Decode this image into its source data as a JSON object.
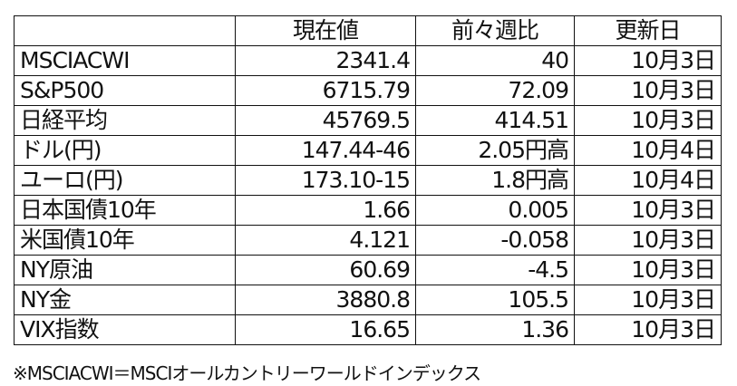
{
  "header": [
    "",
    "現在値",
    "前々週比",
    "更新日"
  ],
  "rows": [
    [
      "MSCIACWI",
      "2341.4",
      "40",
      "10月3日"
    ],
    [
      "S&P500",
      "6715.79",
      "72.09",
      "10月3日"
    ],
    [
      "日経平均",
      "45769.5",
      "414.51",
      "10月3日"
    ],
    [
      "ドル(円)",
      "147.44-46",
      "2.05円高",
      "10月4日"
    ],
    [
      "ユーロ(円)",
      "173.10-15",
      "1.8円高",
      "10月4日"
    ],
    [
      "日本国債10年",
      "1.66",
      "0.005",
      "10月3日"
    ],
    [
      "米国債10年",
      "4.121",
      "-0.058",
      "10月3日"
    ],
    [
      "NY原油",
      "60.69",
      "-4.5",
      "10月3日"
    ],
    [
      "NY金",
      "3880.8",
      "105.5",
      "10月3日"
    ],
    [
      "VIX指数",
      "16.65",
      "1.36",
      "10月3日"
    ]
  ],
  "footnote": "※MSCIACWI＝MSCIオールカントリーワールドインデックス"
}
